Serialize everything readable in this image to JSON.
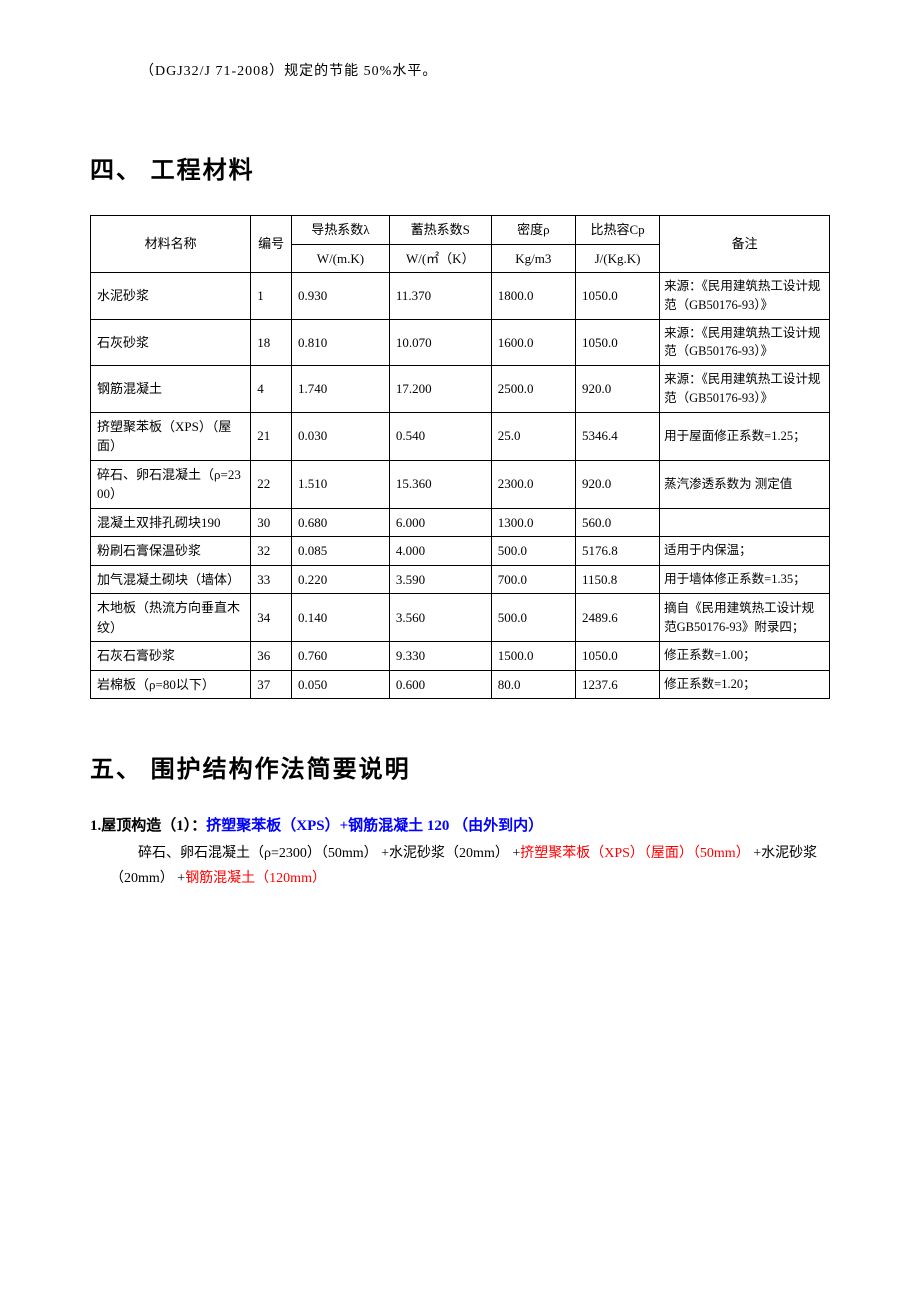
{
  "intro": "（DGJ32/J 71-2008）规定的节能 50%水平。",
  "section4_title": "四、 工程材料",
  "table": {
    "headers": {
      "name": "材料名称",
      "id": "编号",
      "lambda_label": "导热系数λ",
      "lambda_unit": "W/(m.K)",
      "s_label": "蓄热系数S",
      "s_unit": "W/(㎡（K）",
      "rho_label": "密度ρ",
      "rho_unit": "Kg/m3",
      "cp_label": "比热容Cp",
      "cp_unit": "J/(Kg.K)",
      "note": "备注"
    },
    "rows": [
      {
        "name": "水泥砂浆",
        "id": "1",
        "lambda": "0.930",
        "s": "11.370",
        "rho": "1800.0",
        "cp": "1050.0",
        "note": "来源：《民用建筑热工设计规范（GB50176-93）》"
      },
      {
        "name": "石灰砂浆",
        "id": "18",
        "lambda": "0.810",
        "s": "10.070",
        "rho": "1600.0",
        "cp": "1050.0",
        "note": "来源：《民用建筑热工设计规范（GB50176-93）》"
      },
      {
        "name": "钢筋混凝土",
        "id": "4",
        "lambda": "1.740",
        "s": "17.200",
        "rho": "2500.0",
        "cp": "920.0",
        "note": "来源：《民用建筑热工设计规范（GB50176-93）》"
      },
      {
        "name": "挤塑聚苯板（XPS）（屋面）",
        "id": "21",
        "lambda": "0.030",
        "s": "0.540",
        "rho": "25.0",
        "cp": "5346.4",
        "note": "用于屋面修正系数=1.25；"
      },
      {
        "name": "碎石、卵石混凝土（ρ=2300）",
        "id": "22",
        "lambda": "1.510",
        "s": "15.360",
        "rho": "2300.0",
        "cp": "920.0",
        "note": "蒸汽渗透系数为 测定值"
      },
      {
        "name": "混凝土双排孔砌块190",
        "id": "30",
        "lambda": "0.680",
        "s": "6.000",
        "rho": "1300.0",
        "cp": "560.0",
        "note": ""
      },
      {
        "name": "粉刷石膏保温砂浆",
        "id": "32",
        "lambda": "0.085",
        "s": "4.000",
        "rho": "500.0",
        "cp": "5176.8",
        "note": "适用于内保温；"
      },
      {
        "name": "加气混凝土砌块（墙体）",
        "id": "33",
        "lambda": "0.220",
        "s": "3.590",
        "rho": "700.0",
        "cp": "1150.8",
        "note": "用于墙体修正系数=1.35；"
      },
      {
        "name": "木地板（热流方向垂直木纹）",
        "id": "34",
        "lambda": "0.140",
        "s": "3.560",
        "rho": "500.0",
        "cp": "2489.6",
        "note": "摘自《民用建筑热工设计规范GB50176-93》附录四；"
      },
      {
        "name": "石灰石膏砂浆",
        "id": "36",
        "lambda": "0.760",
        "s": "9.330",
        "rho": "1500.0",
        "cp": "1050.0",
        "note": "修正系数=1.00；"
      },
      {
        "name": "岩棉板（ρ=80以下）",
        "id": "37",
        "lambda": "0.050",
        "s": "0.600",
        "rho": "80.0",
        "cp": "1237.6",
        "note": "修正系数=1.20；"
      }
    ]
  },
  "section5_title": "五、 围护结构作法简要说明",
  "roof": {
    "heading_black": "1.屋顶构造（1）：",
    "heading_blue": "挤塑聚苯板（XPS）+钢筋混凝土 120 （由外到内）",
    "p1a": "碎石、卵石混凝土（ρ=2300）（50mm） +水泥砂浆（20mm） +",
    "p1b": "挤塑聚苯板（XPS）（屋面）（50mm）",
    "p1c": " +水泥砂浆（20mm） +",
    "p1d": "钢筋混凝土（120mm）"
  }
}
